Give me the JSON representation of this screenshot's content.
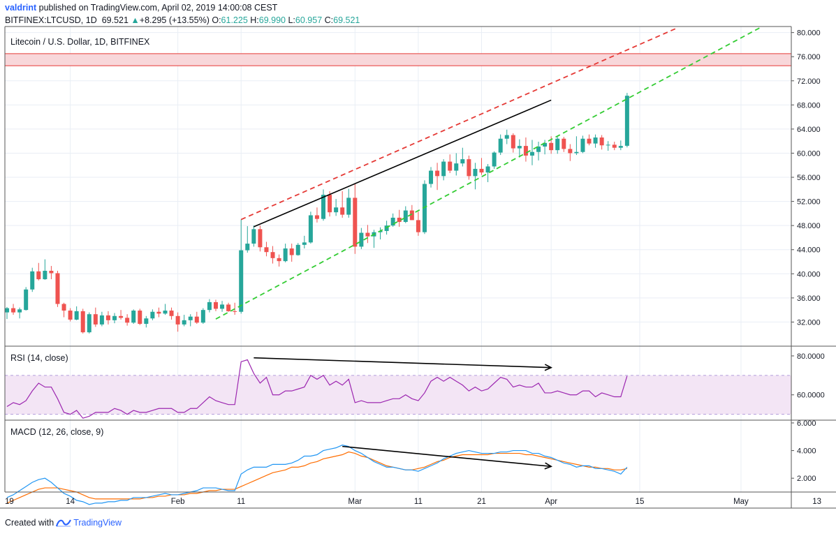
{
  "header": {
    "author": "valdrint",
    "published_text": "published on TradingView.com, April 02, 2019 14:00:08 CEST",
    "symbol": "BITFINEX:LTCUSD, 1D",
    "last": "69.521",
    "arrow": "▲",
    "change": "+8.295 (+13.55%)",
    "o_label": "O:",
    "o_value": "61.225",
    "h_label": "H:",
    "h_value": "69.990",
    "l_label": "L:",
    "l_value": "60.957",
    "c_label": "C:",
    "c_value": "69.521"
  },
  "main_pane": {
    "title": "Litecoin / U.S. Dollar, 1D, BITFINEX"
  },
  "rsi_pane": {
    "title": "RSI (14, close)"
  },
  "macd_pane": {
    "title": "MACD (12, 26, close, 9)"
  },
  "footer": {
    "created_with": "Created with",
    "brand": "TradingView"
  },
  "colors": {
    "up": "#26a69a",
    "down": "#ef5350",
    "grid": "#e9eef5",
    "rsi": "#9c27b0",
    "rsi_band": "#f3e5f5",
    "macd": "#2196f3",
    "signal": "#ff6d00",
    "resistance_fill": "#f8d7da",
    "resistance_line": "#e53935",
    "channel_top": "#e53935",
    "channel_bottom": "#33cc33"
  },
  "chart_data": {
    "type": "candlestick",
    "title": "Litecoin / U.S. Dollar, 1D, BITFINEX",
    "price_axis": {
      "min": 28,
      "max": 81,
      "ticks": [
        32,
        36,
        40,
        44,
        48,
        52,
        56,
        60,
        64,
        68,
        72,
        76,
        80
      ],
      "tick_labels": [
        "32.000",
        "36.000",
        "40.000",
        "44.000",
        "48.000",
        "52.000",
        "56.000",
        "60.000",
        "64.000",
        "68.000",
        "72.000",
        "76.000",
        "80.000"
      ]
    },
    "time_axis": {
      "labels": [
        {
          "text": "19",
          "day": -1
        },
        {
          "text": "14",
          "day": 10
        },
        {
          "text": "Feb",
          "day": 27
        },
        {
          "text": "11",
          "day": 37
        },
        {
          "text": "Mar",
          "day": 55
        },
        {
          "text": "11",
          "day": 65
        },
        {
          "text": "21",
          "day": 75
        },
        {
          "text": "Apr",
          "day": 86
        },
        {
          "text": "15",
          "day": 100
        },
        {
          "text": "May",
          "day": 116
        },
        {
          "text": "13",
          "day": 128
        }
      ]
    },
    "candles": [
      [
        33.6,
        34.5,
        32.5,
        34.3
      ],
      [
        34.3,
        35.0,
        33.2,
        33.6
      ],
      [
        33.6,
        34.4,
        32.6,
        34.1
      ],
      [
        34.0,
        37.8,
        33.9,
        37.4
      ],
      [
        37.4,
        41.0,
        37.0,
        40.4
      ],
      [
        40.4,
        41.8,
        38.9,
        39.1
      ],
      [
        39.1,
        42.4,
        39.0,
        40.5
      ],
      [
        40.5,
        41.3,
        39.1,
        40.1
      ],
      [
        40.1,
        40.5,
        34.5,
        35.0
      ],
      [
        35.0,
        35.2,
        32.8,
        33.9
      ],
      [
        33.9,
        34.3,
        32.1,
        32.4
      ],
      [
        32.4,
        34.6,
        32.3,
        33.8
      ],
      [
        33.8,
        34.2,
        30.1,
        30.3
      ],
      [
        30.3,
        33.6,
        30.1,
        33.3
      ],
      [
        33.3,
        34.4,
        31.2,
        31.6
      ],
      [
        31.6,
        33.7,
        31.3,
        33.1
      ],
      [
        33.1,
        33.8,
        31.6,
        32.3
      ],
      [
        32.3,
        33.5,
        31.8,
        33.0
      ],
      [
        33.0,
        34.0,
        32.4,
        32.7
      ],
      [
        32.7,
        33.3,
        31.4,
        31.9
      ],
      [
        31.9,
        34.1,
        31.7,
        33.9
      ],
      [
        33.9,
        34.2,
        31.5,
        31.7
      ],
      [
        31.7,
        33.0,
        31.1,
        32.6
      ],
      [
        32.6,
        34.1,
        32.3,
        33.7
      ],
      [
        33.7,
        34.4,
        32.8,
        33.4
      ],
      [
        33.4,
        35.0,
        33.2,
        33.9
      ],
      [
        33.9,
        34.4,
        32.4,
        33.0
      ],
      [
        33.0,
        33.6,
        30.4,
        31.6
      ],
      [
        31.6,
        33.2,
        31.3,
        32.3
      ],
      [
        32.3,
        33.3,
        31.3,
        32.9
      ],
      [
        32.9,
        33.7,
        31.7,
        31.9
      ],
      [
        31.9,
        34.3,
        31.7,
        34.0
      ],
      [
        34.0,
        35.8,
        33.6,
        35.3
      ],
      [
        35.3,
        35.7,
        33.8,
        34.2
      ],
      [
        34.2,
        35.5,
        33.7,
        34.9
      ],
      [
        34.9,
        35.2,
        33.7,
        33.8
      ],
      [
        33.8,
        35.2,
        33.2,
        33.7
      ],
      [
        33.7,
        49.0,
        33.4,
        43.9
      ],
      [
        43.9,
        47.9,
        43.5,
        45.0
      ],
      [
        45.0,
        48.0,
        44.5,
        47.4
      ],
      [
        47.4,
        48.0,
        43.7,
        44.4
      ],
      [
        44.4,
        45.3,
        42.9,
        43.6
      ],
      [
        43.6,
        44.6,
        41.7,
        42.6
      ],
      [
        42.6,
        43.2,
        41.2,
        42.1
      ],
      [
        42.1,
        45.0,
        41.9,
        44.2
      ],
      [
        44.2,
        45.0,
        42.0,
        43.1
      ],
      [
        43.1,
        45.1,
        43.0,
        44.8
      ],
      [
        44.8,
        46.3,
        44.2,
        45.2
      ],
      [
        45.2,
        50.3,
        45.0,
        49.7
      ],
      [
        49.7,
        51.0,
        48.5,
        49.1
      ],
      [
        49.1,
        54.0,
        48.8,
        53.1
      ],
      [
        53.1,
        53.7,
        49.5,
        50.2
      ],
      [
        50.2,
        52.4,
        49.6,
        51.0
      ],
      [
        51.0,
        53.7,
        49.3,
        49.8
      ],
      [
        49.8,
        54.1,
        49.3,
        52.6
      ],
      [
        52.6,
        55.0,
        43.3,
        44.5
      ],
      [
        44.5,
        47.6,
        44.1,
        46.8
      ],
      [
        46.8,
        48.1,
        45.1,
        46.2
      ],
      [
        46.2,
        47.3,
        44.3,
        46.9
      ],
      [
        46.9,
        47.7,
        45.7,
        47.1
      ],
      [
        47.1,
        48.8,
        46.5,
        48.0
      ],
      [
        48.0,
        50.0,
        47.8,
        49.3
      ],
      [
        49.3,
        50.6,
        47.8,
        48.6
      ],
      [
        48.6,
        51.2,
        48.4,
        50.5
      ],
      [
        50.5,
        51.4,
        48.9,
        48.9
      ],
      [
        48.9,
        50.3,
        46.3,
        46.9
      ],
      [
        46.9,
        55.5,
        46.6,
        54.9
      ],
      [
        54.9,
        57.7,
        54.3,
        57.1
      ],
      [
        57.1,
        58.4,
        53.9,
        56.2
      ],
      [
        56.2,
        59.0,
        55.5,
        58.6
      ],
      [
        58.6,
        59.8,
        56.7,
        57.1
      ],
      [
        57.1,
        60.0,
        56.3,
        58.3
      ],
      [
        58.3,
        60.9,
        57.8,
        59.0
      ],
      [
        59.0,
        59.6,
        55.6,
        56.2
      ],
      [
        56.2,
        58.4,
        54.0,
        57.4
      ],
      [
        57.4,
        59.2,
        56.4,
        56.8
      ],
      [
        56.8,
        58.2,
        55.2,
        57.8
      ],
      [
        57.8,
        60.3,
        57.4,
        60.1
      ],
      [
        60.1,
        63.1,
        59.7,
        62.4
      ],
      [
        62.4,
        63.9,
        61.5,
        63.0
      ],
      [
        63.0,
        63.3,
        60.1,
        60.8
      ],
      [
        60.8,
        62.3,
        59.3,
        61.2
      ],
      [
        61.2,
        62.6,
        58.6,
        59.6
      ],
      [
        59.6,
        62.2,
        58.0,
        60.2
      ],
      [
        60.2,
        61.9,
        58.8,
        61.1
      ],
      [
        61.1,
        62.2,
        59.8,
        61.7
      ],
      [
        61.7,
        62.8,
        59.9,
        60.5
      ],
      [
        60.5,
        62.7,
        59.9,
        62.4
      ],
      [
        62.4,
        62.7,
        60.2,
        60.7
      ],
      [
        60.7,
        61.5,
        58.7,
        60.0
      ],
      [
        60.0,
        62.8,
        59.7,
        60.2
      ],
      [
        60.2,
        62.9,
        60.0,
        62.4
      ],
      [
        62.4,
        63.1,
        61.3,
        61.6
      ],
      [
        61.6,
        63.1,
        60.9,
        62.6
      ],
      [
        62.6,
        63.0,
        60.6,
        61.3
      ],
      [
        61.3,
        62.0,
        60.4,
        61.4
      ],
      [
        61.4,
        61.9,
        60.5,
        60.9
      ],
      [
        60.9,
        62.1,
        60.5,
        61.2
      ],
      [
        61.225,
        69.99,
        60.957,
        69.521
      ]
    ],
    "resistance_zone": {
      "low": 74.5,
      "high": 76.5
    },
    "channel_lines": [
      {
        "name": "upper",
        "style": "dashed",
        "color": "red",
        "from": {
          "day": 37,
          "price": 49.0
        },
        "to": {
          "day": 106,
          "price": 80.8
        }
      },
      {
        "name": "lower",
        "style": "dashed",
        "color": "green",
        "from": {
          "day": 33,
          "price": 32.5
        },
        "to": {
          "day": 119,
          "price": 80.8
        }
      },
      {
        "name": "high-trend",
        "style": "solid",
        "color": "black",
        "from": {
          "day": 39,
          "price": 47.8
        },
        "to": {
          "day": 86,
          "price": 68.8
        }
      }
    ],
    "rsi": {
      "axis": {
        "min": 47,
        "max": 85,
        "ticks": [
          60,
          80
        ],
        "tick_labels": [
          "60.0000",
          "80.0000"
        ]
      },
      "band": [
        50,
        70
      ],
      "values": [
        54,
        56,
        55,
        57,
        62,
        66,
        64,
        64,
        58,
        51,
        50,
        52,
        48,
        49,
        51,
        51,
        51,
        53,
        52,
        50,
        52,
        51,
        51,
        52,
        53,
        53,
        53,
        51,
        51,
        53,
        53,
        56,
        59,
        57,
        56,
        55,
        55,
        77,
        78,
        71,
        66,
        69,
        60,
        60,
        62,
        62,
        63,
        64,
        70,
        68,
        70,
        65,
        67,
        65,
        68,
        56,
        57,
        56,
        56,
        56,
        57,
        58,
        58,
        60,
        58,
        57,
        61,
        67,
        69,
        67,
        69,
        67,
        65,
        62,
        64,
        62,
        63,
        66,
        69,
        68,
        64,
        65,
        64,
        64,
        66,
        61,
        61,
        62,
        61,
        60,
        60,
        62,
        62,
        59,
        61,
        60,
        59,
        59,
        69.7
      ],
      "arrow": {
        "from": {
          "day": 39,
          "value": 79
        },
        "to": {
          "day": 86,
          "value": 74
        }
      }
    },
    "macd": {
      "axis": {
        "min": 1.0,
        "max": 6.2,
        "ticks": [
          2,
          4,
          6
        ],
        "tick_labels": [
          "2.000",
          "4.000",
          "6.000"
        ]
      },
      "macd_values": [
        0.6,
        0.8,
        1.1,
        1.4,
        1.7,
        1.9,
        2.0,
        1.7,
        1.3,
        0.9,
        0.7,
        0.4,
        0.3,
        0.1,
        0.2,
        0.2,
        0.3,
        0.3,
        0.4,
        0.4,
        0.6,
        0.6,
        0.6,
        0.7,
        0.8,
        0.9,
        0.8,
        0.8,
        0.9,
        1.0,
        1.1,
        1.3,
        1.3,
        1.3,
        1.2,
        1.1,
        1.1,
        2.3,
        2.6,
        2.8,
        2.8,
        2.8,
        3.0,
        3.0,
        3.0,
        3.1,
        3.3,
        3.6,
        3.6,
        3.7,
        4.0,
        4.1,
        4.2,
        4.4,
        4.3,
        4.0,
        3.8,
        3.5,
        3.2,
        3.0,
        2.8,
        2.8,
        2.7,
        2.6,
        2.6,
        2.5,
        2.7,
        2.9,
        3.1,
        3.4,
        3.6,
        3.8,
        3.9,
        4.0,
        3.9,
        3.8,
        3.8,
        3.8,
        3.9,
        3.9,
        4.0,
        4.0,
        4.0,
        3.8,
        3.8,
        3.6,
        3.5,
        3.3,
        3.1,
        3.0,
        2.8,
        2.9,
        2.9,
        2.7,
        2.7,
        2.6,
        2.5,
        2.3,
        2.8
      ],
      "signal_values": [
        0.2,
        0.4,
        0.6,
        0.8,
        1.0,
        1.2,
        1.3,
        1.3,
        1.3,
        1.2,
        1.1,
        1.0,
        0.8,
        0.6,
        0.5,
        0.5,
        0.5,
        0.5,
        0.5,
        0.5,
        0.5,
        0.5,
        0.6,
        0.6,
        0.7,
        0.7,
        0.8,
        0.8,
        0.8,
        0.9,
        0.9,
        1.0,
        1.1,
        1.1,
        1.2,
        1.2,
        1.2,
        1.4,
        1.6,
        1.8,
        2.0,
        2.2,
        2.4,
        2.5,
        2.6,
        2.8,
        2.8,
        2.9,
        3.1,
        3.2,
        3.4,
        3.5,
        3.6,
        3.7,
        3.9,
        3.8,
        3.6,
        3.5,
        3.3,
        3.1,
        2.9,
        2.8,
        2.7,
        2.6,
        2.6,
        2.7,
        2.8,
        3.0,
        3.2,
        3.3,
        3.5,
        3.6,
        3.7,
        3.7,
        3.7,
        3.7,
        3.7,
        3.8,
        3.8,
        3.8,
        3.8,
        3.8,
        3.7,
        3.7,
        3.6,
        3.5,
        3.4,
        3.3,
        3.2,
        3.1,
        3.0,
        2.9,
        2.8,
        2.8,
        2.7,
        2.7,
        2.6,
        2.6,
        2.7
      ],
      "arrow": {
        "from": {
          "day": 53,
          "value": 4.3
        },
        "to": {
          "day": 86,
          "value": 2.85
        }
      }
    }
  }
}
